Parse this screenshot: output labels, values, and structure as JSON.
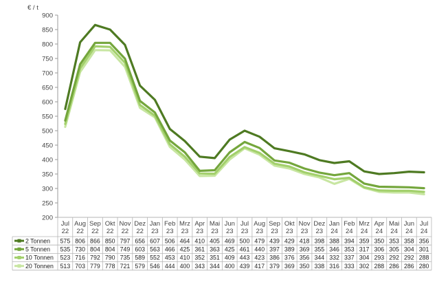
{
  "chart_data": {
    "type": "line",
    "ylabel": "€ / t",
    "ylim": [
      200,
      900
    ],
    "yticks": [
      200,
      250,
      300,
      350,
      400,
      450,
      500,
      550,
      600,
      650,
      700,
      750,
      800,
      850,
      900
    ],
    "grid": false,
    "legend": "data-table-left",
    "categories": [
      [
        "Jul",
        "22"
      ],
      [
        "Aug",
        "22"
      ],
      [
        "Sep",
        "22"
      ],
      [
        "Okt",
        "22"
      ],
      [
        "Nov",
        "22"
      ],
      [
        "Dez",
        "22"
      ],
      [
        "Jan",
        "23"
      ],
      [
        "Feb",
        "23"
      ],
      [
        "Mrz",
        "23"
      ],
      [
        "Apr",
        "23"
      ],
      [
        "Mai",
        "23"
      ],
      [
        "Jun",
        "23"
      ],
      [
        "Jul",
        "23"
      ],
      [
        "Aug",
        "23"
      ],
      [
        "Sep",
        "23"
      ],
      [
        "Okt",
        "23"
      ],
      [
        "Nov",
        "23"
      ],
      [
        "Dez",
        "23"
      ],
      [
        "Jan",
        "24"
      ],
      [
        "Feb",
        "24"
      ],
      [
        "Mrz",
        "24"
      ],
      [
        "Apr",
        "24"
      ],
      [
        "Mai",
        "24"
      ],
      [
        "Jun",
        "24"
      ],
      [
        "Jul",
        "24"
      ]
    ],
    "series": [
      {
        "name": "2 Tonnen",
        "color": "#4e7a22",
        "values": [
          575,
          806,
          866,
          850,
          797,
          656,
          607,
          506,
          464,
          410,
          405,
          469,
          500,
          479,
          439,
          429,
          418,
          398,
          388,
          394,
          359,
          350,
          353,
          358,
          356
        ]
      },
      {
        "name": "5 Tonnen",
        "color": "#74a63c",
        "values": [
          535,
          730,
          804,
          804,
          749,
          603,
          563,
          466,
          425,
          361,
          363,
          425,
          461,
          440,
          397,
          389,
          369,
          355,
          346,
          353,
          317,
          306,
          305,
          304,
          301
        ]
      },
      {
        "name": "10 Tonnen",
        "color": "#a3d06c",
        "values": [
          523,
          716,
          792,
          790,
          735,
          589,
          552,
          453,
          410,
          352,
          351,
          409,
          443,
          423,
          386,
          376,
          356,
          344,
          332,
          337,
          304,
          293,
          292,
          292,
          288
        ]
      },
      {
        "name": "20 Tonnen",
        "color": "#c8e6a2",
        "values": [
          513,
          703,
          779,
          778,
          721,
          579,
          546,
          444,
          400,
          343,
          344,
          400,
          439,
          417,
          379,
          369,
          350,
          338,
          316,
          333,
          302,
          288,
          286,
          286,
          280
        ]
      }
    ]
  }
}
